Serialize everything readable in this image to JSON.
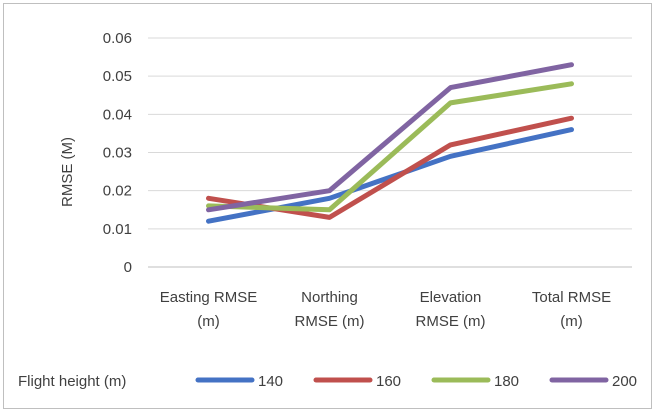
{
  "chart_data": {
    "type": "line",
    "categories": [
      [
        "Easting RMSE",
        "(m)"
      ],
      [
        "Northing",
        "RMSE (m)"
      ],
      [
        "Elevation",
        "RMSE (m)"
      ],
      [
        "Total RMSE",
        "(m)"
      ]
    ],
    "ylabel": "RMSE (M)",
    "xlabel": "",
    "ylim": [
      0,
      0.06
    ],
    "yticks": [
      "0",
      "0.01",
      "0.02",
      "0.03",
      "0.04",
      "0.05",
      "0.06"
    ],
    "grid": true,
    "legend_title": "Flight height (m)",
    "legend_position": "bottom",
    "series": [
      {
        "name": "140",
        "color": "#4472c4",
        "values": [
          0.012,
          0.018,
          0.029,
          0.036
        ]
      },
      {
        "name": "160",
        "color": "#c0504d",
        "values": [
          0.018,
          0.013,
          0.032,
          0.039
        ]
      },
      {
        "name": "180",
        "color": "#9bbb59",
        "values": [
          0.016,
          0.015,
          0.043,
          0.048
        ]
      },
      {
        "name": "200",
        "color": "#8064a2",
        "values": [
          0.015,
          0.02,
          0.047,
          0.053
        ]
      }
    ]
  }
}
